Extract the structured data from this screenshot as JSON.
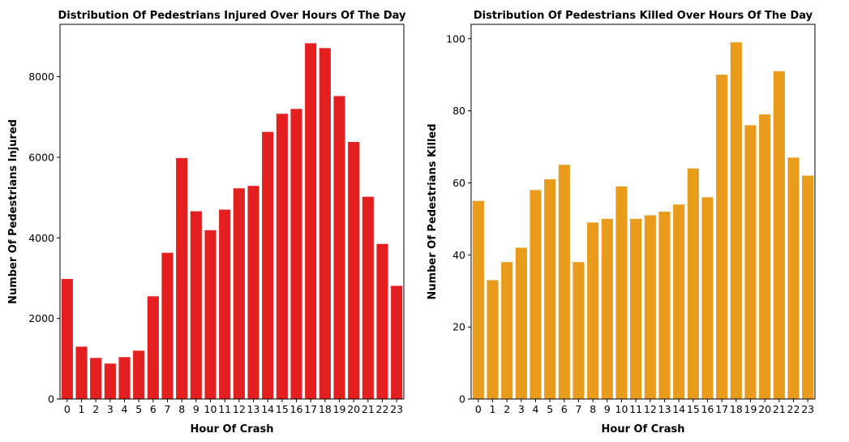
{
  "chart_data": [
    {
      "type": "bar",
      "title": "Distribution Of Pedestrians Injured Over Hours Of The Day",
      "xlabel": "Hour Of Crash",
      "ylabel": "Number Of Pedestrians Injured",
      "categories": [
        "0",
        "1",
        "2",
        "3",
        "4",
        "5",
        "6",
        "7",
        "8",
        "9",
        "10",
        "11",
        "12",
        "13",
        "14",
        "15",
        "16",
        "17",
        "18",
        "19",
        "20",
        "21",
        "22",
        "23"
      ],
      "values": [
        2980,
        1300,
        1020,
        880,
        1040,
        1200,
        2550,
        3630,
        5980,
        4660,
        4190,
        4700,
        5230,
        5290,
        6630,
        7080,
        7200,
        8830,
        8710,
        7520,
        6380,
        5020,
        3850,
        2810
      ],
      "ylim": [
        0,
        9300
      ],
      "yticks": [
        0,
        2000,
        4000,
        6000,
        8000
      ],
      "color": "#e41f1f",
      "grid": false
    },
    {
      "type": "bar",
      "title": "Distribution Of Pedestrians Killed Over Hours Of The Day",
      "xlabel": "Hour Of Crash",
      "ylabel": "Number Of Pedestrians Killed",
      "categories": [
        "0",
        "1",
        "2",
        "3",
        "4",
        "5",
        "6",
        "7",
        "8",
        "9",
        "10",
        "11",
        "12",
        "13",
        "14",
        "15",
        "16",
        "17",
        "18",
        "19",
        "20",
        "21",
        "22",
        "23"
      ],
      "values": [
        55,
        33,
        38,
        42,
        58,
        61,
        65,
        38,
        49,
        50,
        59,
        50,
        51,
        52,
        54,
        64,
        56,
        90,
        99,
        76,
        79,
        91,
        67,
        62
      ],
      "ylim": [
        0,
        104
      ],
      "yticks": [
        0,
        20,
        40,
        60,
        80,
        100
      ],
      "color": "#e99c1c",
      "grid": false
    }
  ]
}
